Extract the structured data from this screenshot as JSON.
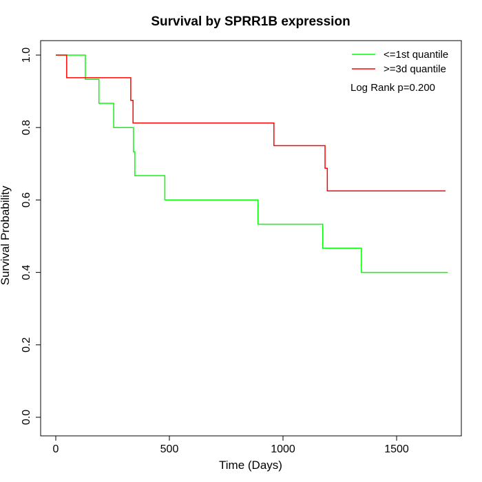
{
  "chart_data": {
    "type": "line",
    "title": "Survival by SPRR1B expression",
    "xlabel": "Time (Days)",
    "ylabel": "Survival Probability",
    "xlim": [
      0,
      1730
    ],
    "ylim": [
      0,
      1
    ],
    "x_ticks": [
      0,
      500,
      1000,
      1500
    ],
    "y_ticks": [
      0.0,
      0.2,
      0.4,
      0.6,
      0.8,
      1.0
    ],
    "x_tick_labels": [
      "0",
      "500",
      "1000",
      "1500"
    ],
    "y_tick_labels": [
      "0.0",
      "0.2",
      "0.4",
      "0.6",
      "0.8",
      "1.0"
    ],
    "grid": false,
    "legend_position": "top-right",
    "series": [
      {
        "name": "<=1st quantile",
        "color": "#00ff00",
        "step": true,
        "points": [
          [
            0,
            1.0
          ],
          [
            130,
            0.933
          ],
          [
            190,
            0.867
          ],
          [
            255,
            0.8
          ],
          [
            342,
            0.733
          ],
          [
            348,
            0.667
          ],
          [
            480,
            0.6
          ],
          [
            890,
            0.533
          ],
          [
            1175,
            0.467
          ],
          [
            1345,
            0.4
          ],
          [
            1725,
            0.4
          ]
        ]
      },
      {
        "name": ">=3d quantile",
        "color": "#ff0000",
        "step": true,
        "points": [
          [
            0,
            1.0
          ],
          [
            48,
            0.9375
          ],
          [
            330,
            0.875
          ],
          [
            340,
            0.8125
          ],
          [
            960,
            0.75
          ],
          [
            1185,
            0.6875
          ],
          [
            1195,
            0.625
          ],
          [
            1715,
            0.625
          ]
        ]
      }
    ],
    "annotations": [
      "Log Rank p=0.200"
    ]
  }
}
